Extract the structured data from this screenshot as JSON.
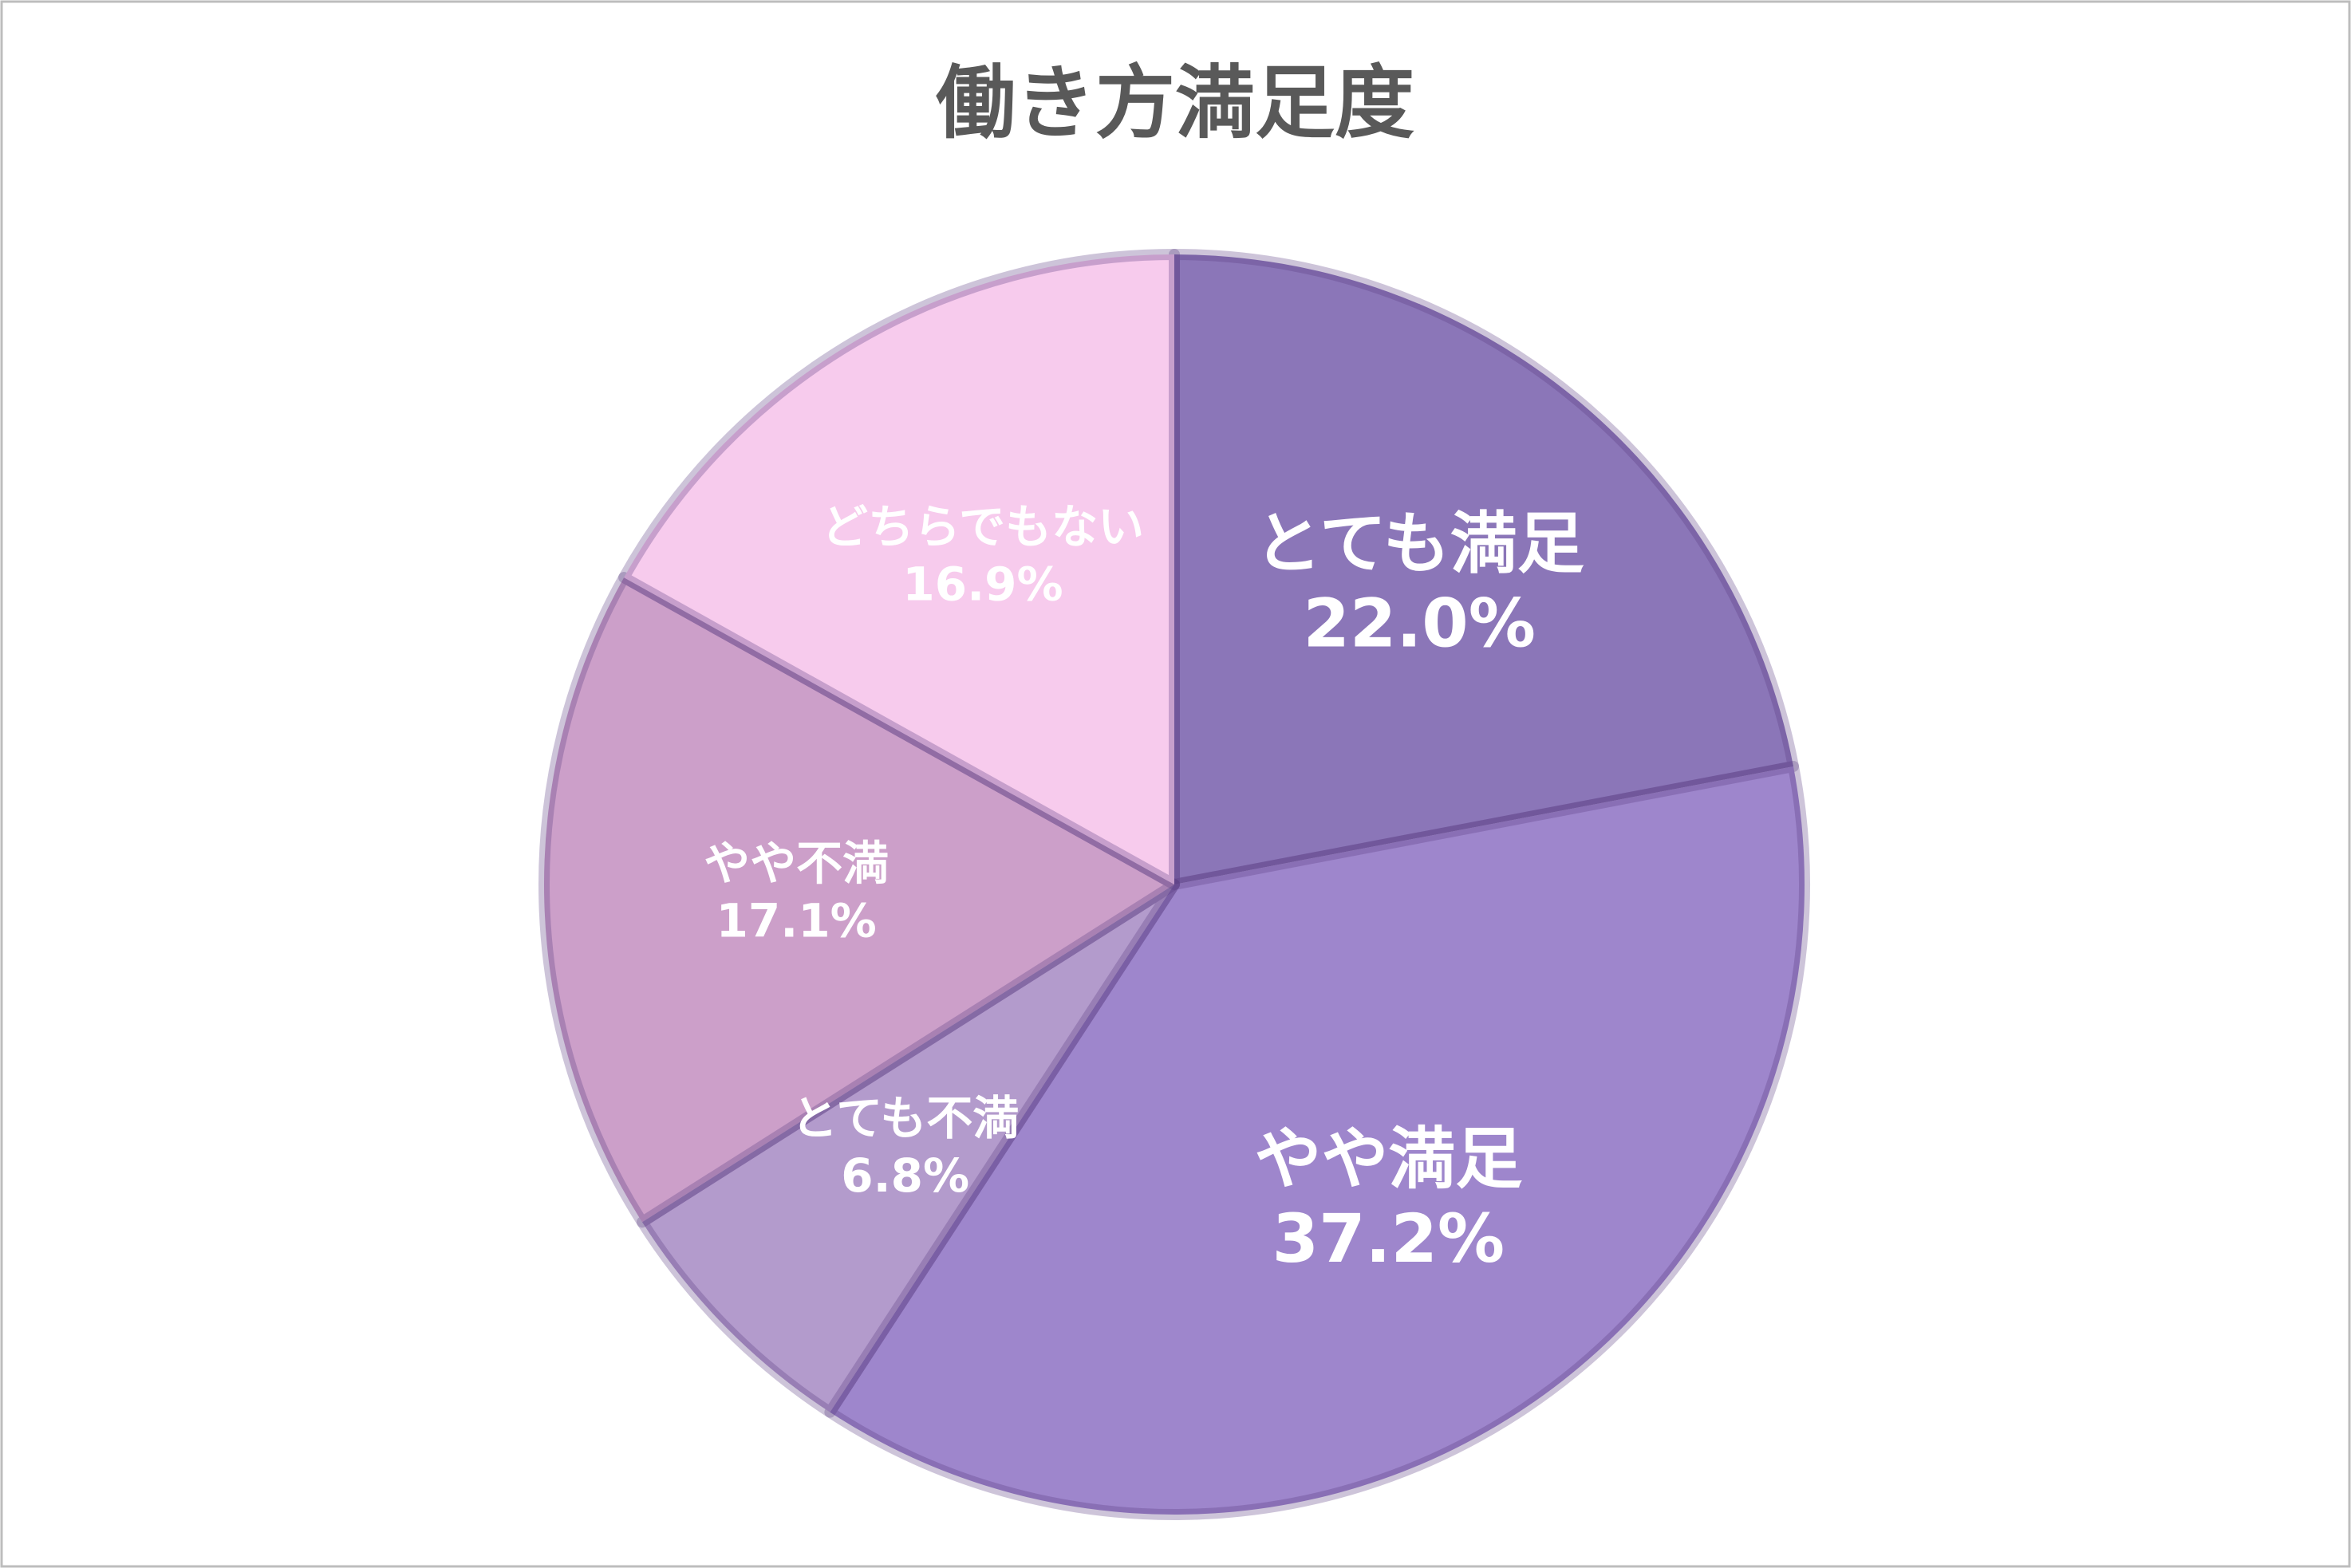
{
  "chart_data": {
    "type": "pie",
    "title": "働き方満足度",
    "categories": [
      "とても満足",
      "やや満足",
      "とても不満",
      "やや不満",
      "どちらでもない"
    ],
    "values": [
      22.0,
      37.2,
      6.8,
      17.1,
      16.9
    ],
    "value_labels": [
      "22.0%",
      "37.2%",
      "6.8%",
      "17.1%",
      "16.9%"
    ],
    "colors": [
      "#8b76b8",
      "#9e86cc",
      "#b39bcc",
      "#cc9fc9",
      "#f7cbed"
    ]
  }
}
